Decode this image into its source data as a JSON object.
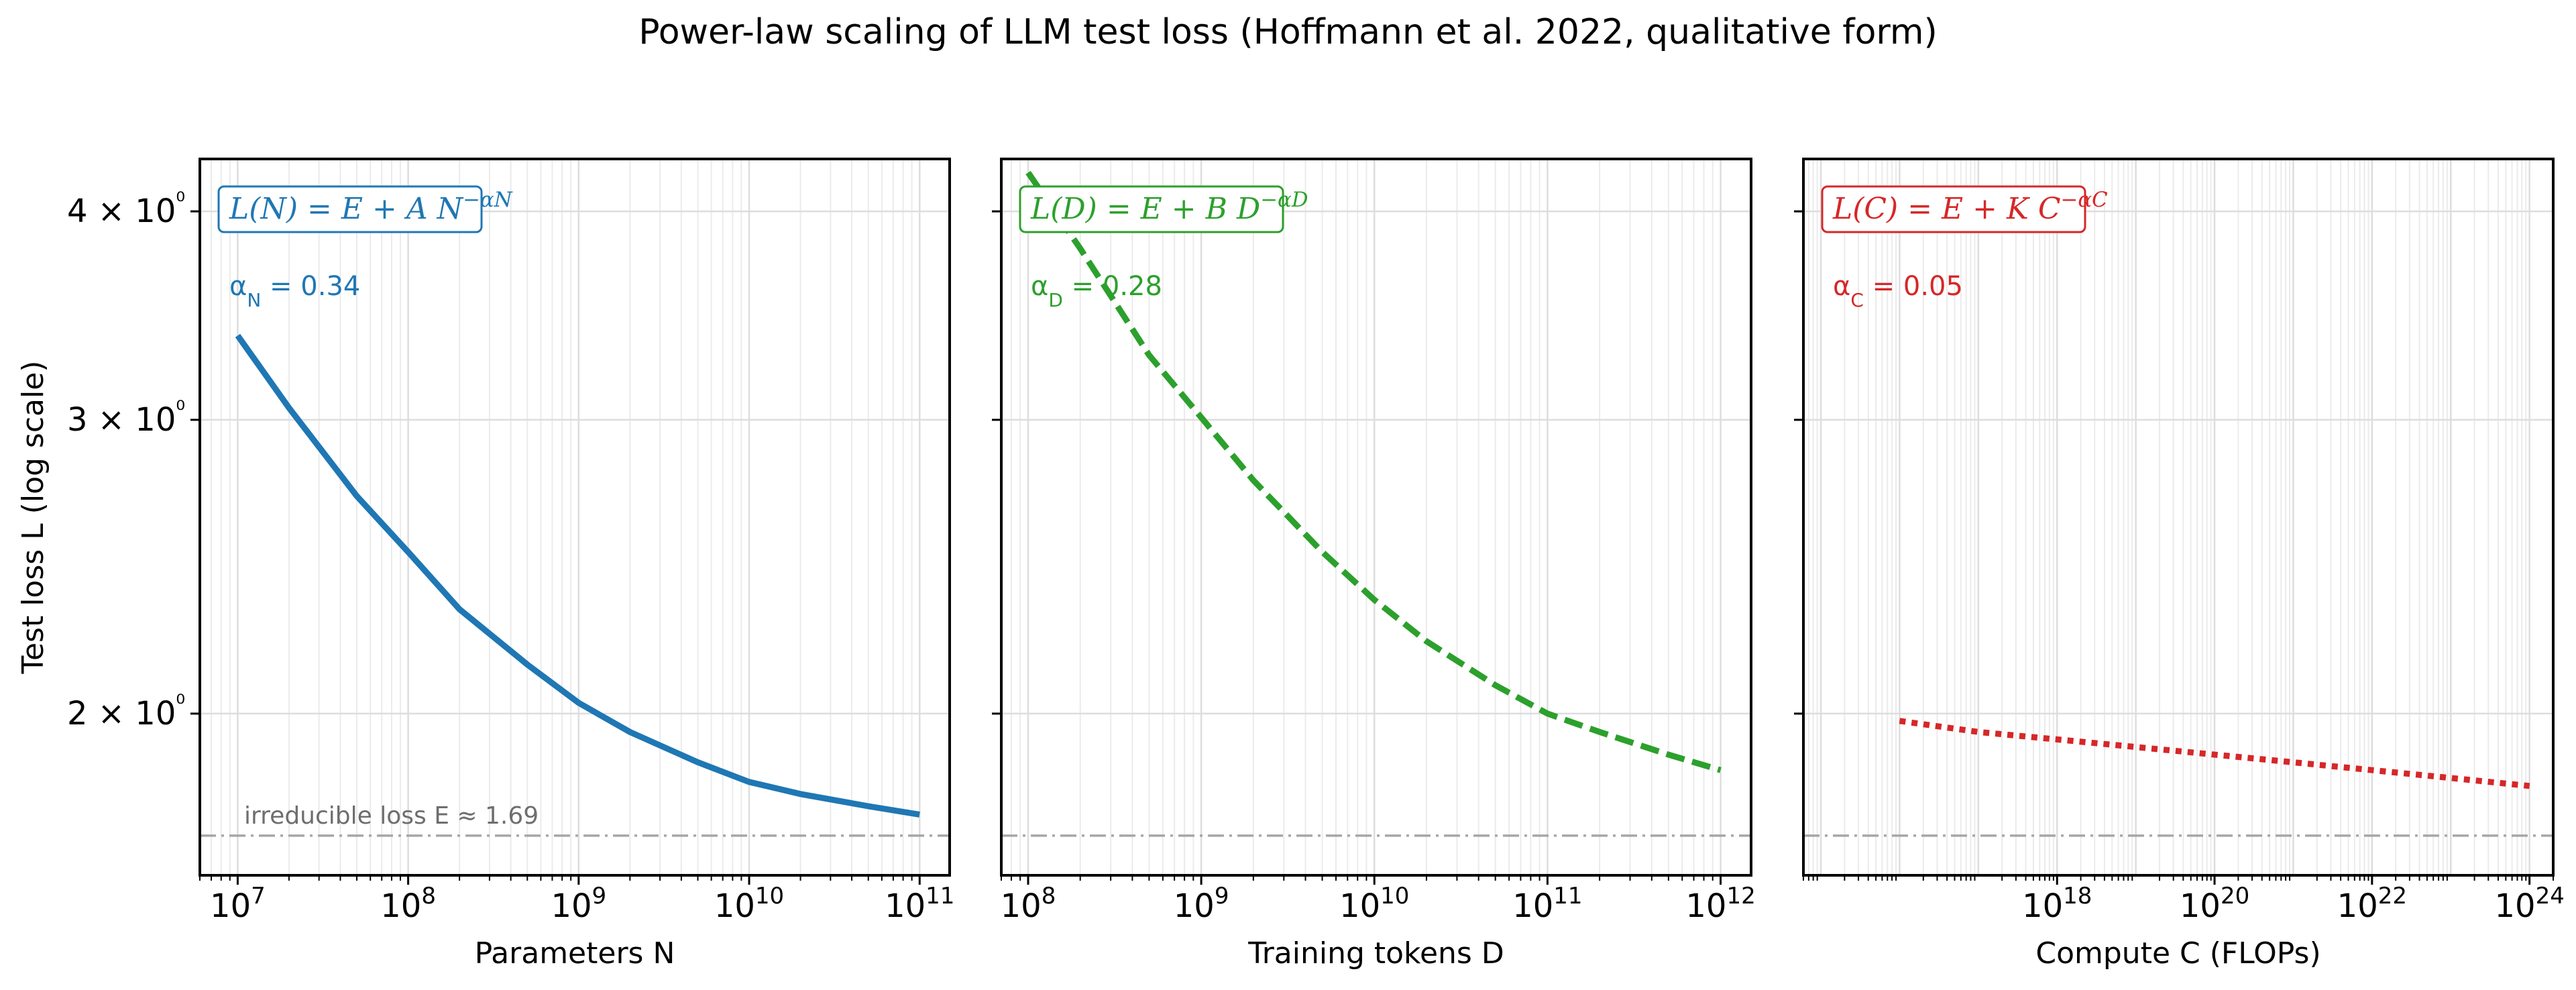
{
  "suptitle": "Power-law scaling of LLM test loss (Hoffmann et al. 2022, qualitative form)",
  "ylabel": "Test loss  L  (log scale)",
  "y_ticks": [
    {
      "value": 4,
      "label": "4 × 10⁰"
    },
    {
      "value": 3,
      "label": "3 × 10⁰"
    },
    {
      "value": 2,
      "label": "2 × 10⁰"
    }
  ],
  "chart_data": [
    {
      "type": "line",
      "xlabel": "Parameters  N",
      "xscale": "log",
      "yscale": "log",
      "xlim": [
        6000000,
        150000000000
      ],
      "ylim": [
        1.6,
        4.3
      ],
      "x_ticks": [
        {
          "value": 10000000,
          "base": "10",
          "exp": "7"
        },
        {
          "value": 100000000,
          "base": "10",
          "exp": "8"
        },
        {
          "value": 1000000000,
          "base": "10",
          "exp": "9"
        },
        {
          "value": 10000000000,
          "base": "10",
          "exp": "10"
        },
        {
          "value": 100000000000,
          "base": "10",
          "exp": "11"
        }
      ],
      "grid": true,
      "color": "#1f77b4",
      "linestyle": "solid",
      "formula": "L(N) = E + A N^(−α_N)",
      "alpha_label": "α_N = 0.34",
      "series": [
        {
          "x": [
            10000000,
            20000000,
            50000000,
            100000000,
            200000000,
            500000000,
            1000000000,
            2000000000,
            5000000000,
            10000000000,
            20000000000,
            50000000000,
            100000000000
          ],
          "y": [
            3.37,
            3.05,
            2.7,
            2.5,
            2.31,
            2.14,
            2.03,
            1.95,
            1.87,
            1.82,
            1.79,
            1.76,
            1.74
          ]
        }
      ],
      "annotation": "irreducible loss  E ≈ 1.69",
      "hline": 1.69
    },
    {
      "type": "line",
      "xlabel": "Training tokens  D",
      "xscale": "log",
      "yscale": "log",
      "xlim": [
        70000000,
        1500000000000
      ],
      "ylim": [
        1.6,
        4.3
      ],
      "x_ticks": [
        {
          "value": 100000000,
          "base": "10",
          "exp": "8"
        },
        {
          "value": 1000000000,
          "base": "10",
          "exp": "9"
        },
        {
          "value": 10000000000,
          "base": "10",
          "exp": "10"
        },
        {
          "value": 100000000000,
          "base": "10",
          "exp": "11"
        },
        {
          "value": 1000000000000,
          "base": "10",
          "exp": "12"
        }
      ],
      "grid": true,
      "color": "#2ca02c",
      "linestyle": "dashed",
      "formula": "L(D) = E + B D^(−α_D)",
      "alpha_label": "α_D = 0.28",
      "series": [
        {
          "x": [
            100000000,
            200000000,
            500000000,
            1000000000,
            2000000000,
            5000000000,
            10000000000,
            20000000000,
            50000000000,
            100000000000,
            200000000000,
            500000000000,
            1000000000000
          ],
          "y": [
            4.22,
            3.8,
            3.28,
            3.01,
            2.76,
            2.5,
            2.34,
            2.21,
            2.08,
            2.0,
            1.95,
            1.89,
            1.85
          ]
        }
      ],
      "hline": 1.69
    },
    {
      "type": "line",
      "xlabel": "Compute  C  (FLOPs)",
      "xscale": "log",
      "yscale": "log",
      "xlim": [
        600000000000000,
        2000000000000000000000000
      ],
      "ylim": [
        1.6,
        4.3
      ],
      "x_ticks": [
        {
          "value": 1000000000000000000,
          "base": "10",
          "exp": "18"
        },
        {
          "value": 100000000000000000000,
          "base": "10",
          "exp": "20"
        },
        {
          "value": 10000000000000000000000,
          "base": "10",
          "exp": "22"
        },
        {
          "value": 1000000000000000000000000,
          "base": "10",
          "exp": "24"
        }
      ],
      "grid": true,
      "color": "#d62728",
      "linestyle": "dotted",
      "formula": "L(C) = E + K C^(−α_C)",
      "alpha_label": "α_C = 0.05",
      "series": [
        {
          "x": [
            10000000000000000,
            100000000000000000,
            1000000000000000000,
            10000000000000000000,
            100000000000000000000,
            1000000000000000000000,
            10000000000000000000000,
            100000000000000000000000,
            1000000000000000000000000
          ],
          "y": [
            1.98,
            1.95,
            1.93,
            1.91,
            1.89,
            1.87,
            1.85,
            1.83,
            1.81
          ]
        }
      ],
      "hline": 1.69
    }
  ]
}
